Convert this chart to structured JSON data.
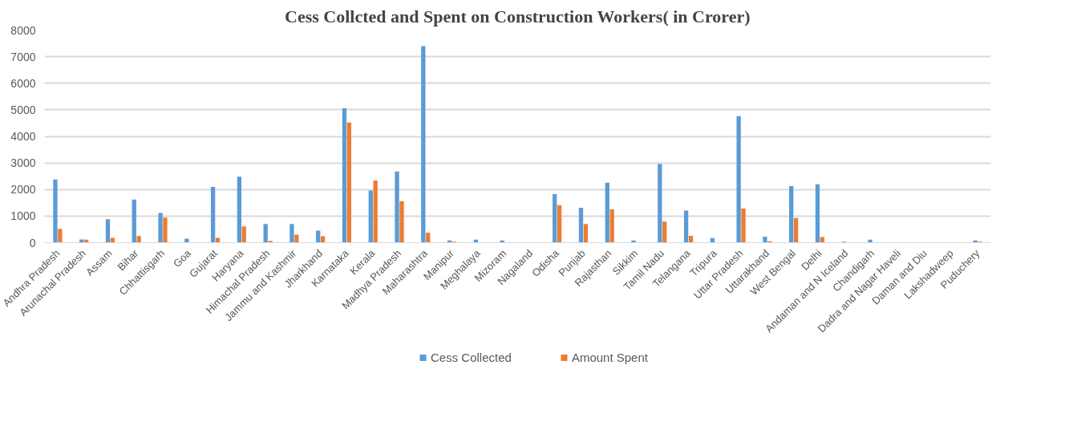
{
  "chart_data": {
    "type": "bar",
    "title": "Cess Collcted and Spent on Construction Workers( in Crorer)",
    "categories": [
      "Andhra Pradesh",
      "Arunachal Pradesh",
      "Assam",
      "Bihar",
      "Chhattisgarh",
      "Goa",
      "Gujarat",
      "Haryana",
      "Himachal Pradesh",
      "Jammu and Kashmir",
      "Jharkhand",
      "Karnataka",
      "Kerala",
      "Madhya Pradesh",
      "Maharashtra",
      "Manipur",
      "Meghalaya",
      "Mizoram",
      "Nagaland",
      "Odisha",
      "Punjab",
      "Rajasthan",
      "Sikkim",
      "Tamil Nadu",
      "Telangana",
      "Tripura",
      "Uttar Pradesh",
      "Uttarakhand",
      "West Bengal",
      "Delhi",
      "Andaman and N Iceland",
      "Chandigarh",
      "Dadra and Nagar Haveli",
      "Daman and Diu",
      "Lakshadweep",
      "Puduchery"
    ],
    "series": [
      {
        "name": "Cess Collected",
        "color": "#5b9bd5",
        "values": [
          2380,
          120,
          880,
          1620,
          1120,
          150,
          2100,
          2480,
          700,
          700,
          450,
          5060,
          1960,
          2680,
          7400,
          80,
          110,
          80,
          0,
          1830,
          1310,
          2260,
          80,
          2960,
          1210,
          170,
          4760,
          230,
          2130,
          2200,
          40,
          110,
          0,
          0,
          0,
          80
        ]
      },
      {
        "name": "Amount Spent",
        "color": "#ed7d31",
        "values": [
          520,
          110,
          180,
          250,
          940,
          0,
          180,
          610,
          70,
          300,
          240,
          4520,
          2340,
          1560,
          380,
          40,
          0,
          0,
          0,
          1410,
          700,
          1250,
          0,
          790,
          260,
          0,
          1280,
          50,
          930,
          210,
          0,
          0,
          0,
          0,
          0,
          40
        ]
      }
    ],
    "ylim": [
      0,
      8000
    ],
    "yticks": [
      0,
      1000,
      2000,
      3000,
      4000,
      5000,
      6000,
      7000,
      8000
    ],
    "grid": "y",
    "legend": "bottom"
  }
}
